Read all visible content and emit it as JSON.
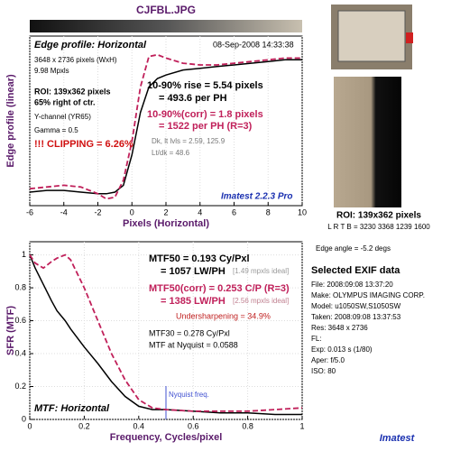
{
  "title": "CJFBL.JPG",
  "chart_data": [
    {
      "type": "line",
      "xlabel": "Pixels (Horizontal)",
      "ylabel": "Edge profile (linear)",
      "xlim": [
        -6,
        10
      ],
      "xticks": [
        -6,
        -4,
        -2,
        0,
        2,
        4,
        6,
        8,
        10
      ],
      "ylim": [
        0,
        1
      ],
      "grid": true,
      "x": [
        -6,
        -5,
        -4,
        -3,
        -2,
        -1.5,
        -1,
        -0.5,
        0,
        0.5,
        1,
        1.5,
        2,
        3,
        4,
        5,
        6,
        7,
        8,
        9,
        10
      ],
      "series": [
        {
          "color": "#000000",
          "style": "solid",
          "values": [
            0.08,
            0.09,
            0.09,
            0.08,
            0.07,
            0.07,
            0.08,
            0.12,
            0.3,
            0.55,
            0.7,
            0.75,
            0.77,
            0.8,
            0.81,
            0.82,
            0.83,
            0.84,
            0.85,
            0.86,
            0.86
          ]
        },
        {
          "color": "#c0205a",
          "style": "dashed",
          "values": [
            0.1,
            0.11,
            0.12,
            0.11,
            0.07,
            0.04,
            0.05,
            0.15,
            0.38,
            0.7,
            0.88,
            0.89,
            0.87,
            0.84,
            0.83,
            0.83,
            0.84,
            0.85,
            0.86,
            0.87,
            0.87
          ]
        }
      ],
      "annotations": [
        "Edge profile: Horizontal",
        "08-Sep-2008 14:33:38",
        "3648 x 2736 pixels (WxH)",
        "9.98 Mpxls",
        "ROI: 139x362 pixels",
        "65% right of ctr.",
        "Y-channel (YR65)",
        "Gamma = 0.5",
        "!!! CLIPPING =   6.26%",
        "10-90% rise = 5.54 pixels",
        "= 493.6 per PH",
        "10-90%(corr) = 1.8 pixels",
        "= 1522 per PH  (R=3)",
        "Dk, lt lvls = 2.59, 125.9",
        "Lt/dk = 48.6",
        "Imatest 2.2.3 Pro"
      ]
    },
    {
      "type": "line",
      "xlabel": "Frequency, Cycles/pixel",
      "ylabel": "SFR (MTF)",
      "xlim": [
        0,
        1
      ],
      "xticks": [
        0,
        0.2,
        0.4,
        0.6,
        0.8,
        1
      ],
      "ylim": [
        0,
        1.08
      ],
      "yticks": [
        0,
        0.2,
        0.4,
        0.6,
        0.8,
        1
      ],
      "grid": true,
      "x": [
        0,
        0.02,
        0.05,
        0.08,
        0.1,
        0.13,
        0.15,
        0.2,
        0.25,
        0.3,
        0.35,
        0.4,
        0.45,
        0.5,
        0.6,
        0.7,
        0.8,
        0.9,
        1
      ],
      "series": [
        {
          "color": "#000000",
          "style": "solid",
          "values": [
            1,
            0.92,
            0.82,
            0.72,
            0.66,
            0.6,
            0.55,
            0.44,
            0.34,
            0.23,
            0.14,
            0.08,
            0.06,
            0.06,
            0.05,
            0.04,
            0.04,
            0.03,
            0.03
          ]
        },
        {
          "color": "#c0205a",
          "style": "dashed",
          "values": [
            1,
            0.95,
            0.92,
            0.96,
            0.98,
            1,
            0.97,
            0.8,
            0.6,
            0.4,
            0.24,
            0.12,
            0.07,
            0.06,
            0.05,
            0.05,
            0.05,
            0.06,
            0.07
          ]
        }
      ],
      "nyquist": {
        "x": 0.5,
        "label": "Nyquist freq."
      },
      "annotations": [
        "MTF50 = 0.193 Cy/Pxl",
        "= 1057 LW/PH",
        "[1.49 mpxls ideal]",
        "MTF50(corr) = 0.253 C/P  (R=3)",
        "= 1385 LW/PH",
        "[2.56 mpxls ideal]",
        "Undersharpening = 34.9%",
        "MTF30 = 0.278 Cy/Pxl",
        "MTF at Nyquist = 0.0588",
        "MTF: Horizontal"
      ]
    }
  ],
  "side_panel": {
    "roi": "ROI: 139x362 pixels",
    "lrtb": "L R T B = 3230 3368 1239 1600",
    "edge_angle": "Edge angle = -5.2 degs",
    "exif_title": "Selected EXIF data",
    "exif": [
      "File:  2008:09:08 13:37:20",
      "Make:  OLYMPUS IMAGING CORP.",
      "Model:  u1050SW,S1050SW",
      "Taken:  2008:09:08 13:37:53",
      "Res:  3648 x 2736",
      "FL:",
      "Exp:  0.013 s  (1/80)",
      "Aper:  f/5.0",
      "ISO:  80"
    ],
    "logo": "Imatest"
  }
}
